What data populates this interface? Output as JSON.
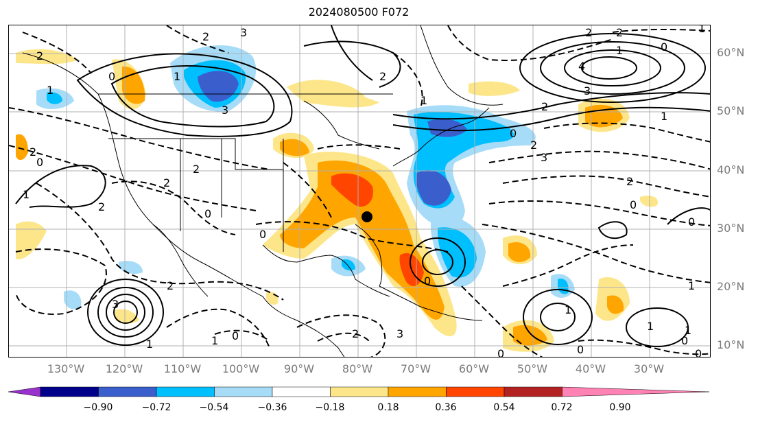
{
  "title": "2024080500 F072",
  "lon_labels": [
    "130°W",
    "120°W",
    "110°W",
    "100°W",
    "90°W",
    "80°W",
    "70°W",
    "60°W",
    "50°W",
    "40°W",
    "30°W"
  ],
  "lat_labels": [
    "60°N",
    "50°N",
    "40°N",
    "30°N",
    "20°N",
    "10°N"
  ],
  "colorbar": {
    "ticks": [
      "−0.90",
      "−0.72",
      "−0.54",
      "−0.36",
      "−0.18",
      "0.18",
      "0.36",
      "0.54",
      "0.72",
      "0.90"
    ],
    "colors": [
      "#9932cc",
      "#00008b",
      "#3a5fcd",
      "#00bfff",
      "#a6dcf7",
      "#ffffff",
      "#fde68a",
      "#ffa500",
      "#ff4500",
      "#b22222",
      "#ff82b4"
    ]
  },
  "contour_labels": [
    "2",
    "3",
    "2",
    "2",
    "1",
    "3",
    "4",
    "3",
    "2",
    "1",
    "0",
    "2",
    "2",
    "3",
    "2",
    "0",
    "1",
    "0",
    "2",
    "1",
    "0",
    "2",
    "2",
    "2",
    "0",
    "1",
    "0",
    "0",
    "3",
    "2",
    "1",
    "1",
    "0",
    "0",
    "0",
    "0",
    "2",
    "1",
    "1",
    "1",
    "0",
    "1",
    "1",
    "2",
    "3",
    "0",
    "1",
    "0"
  ],
  "marker": "station-dot"
}
